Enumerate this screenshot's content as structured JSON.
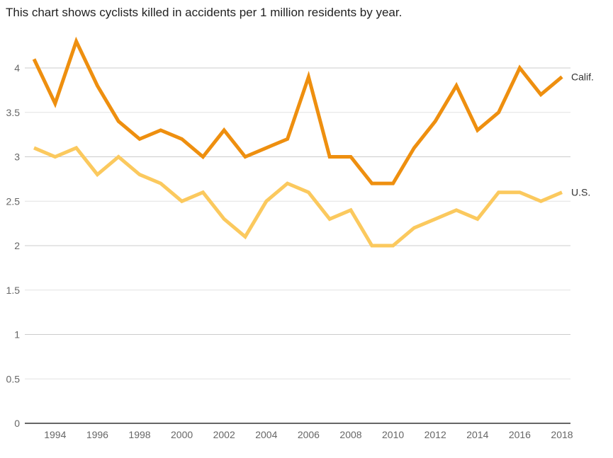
{
  "chart_data": {
    "type": "line",
    "title": "This chart shows cyclists killed in accidents per 1 million residents by year.",
    "xlabel": "",
    "ylabel": "",
    "x": [
      1993,
      1994,
      1995,
      1996,
      1997,
      1998,
      1999,
      2000,
      2001,
      2002,
      2003,
      2004,
      2005,
      2006,
      2007,
      2008,
      2009,
      2010,
      2011,
      2012,
      2013,
      2014,
      2015,
      2016,
      2017,
      2018
    ],
    "x_ticks": [
      "1994",
      "1996",
      "1998",
      "2000",
      "2002",
      "2004",
      "2006",
      "2008",
      "2010",
      "2012",
      "2014",
      "2016",
      "2018"
    ],
    "y_ticks": [
      "0",
      "0.5",
      "1",
      "1.5",
      "2",
      "2.5",
      "3",
      "3.5",
      "4"
    ],
    "ylim": [
      0,
      4.4
    ],
    "grid": true,
    "legend": "inline labels at right end of lines",
    "series": [
      {
        "name": "Calif.",
        "color": "#ee8f0f",
        "values": [
          4.1,
          3.6,
          4.3,
          3.8,
          3.4,
          3.2,
          3.3,
          3.2,
          3.0,
          3.3,
          3.0,
          3.1,
          3.2,
          3.9,
          3.0,
          3.0,
          2.7,
          2.7,
          3.1,
          3.4,
          3.8,
          3.3,
          3.5,
          4.0,
          3.7,
          3.9
        ]
      },
      {
        "name": "U.S.",
        "color": "#fbc95e",
        "values": [
          3.1,
          3.0,
          3.1,
          2.8,
          3.0,
          2.8,
          2.7,
          2.5,
          2.6,
          2.3,
          2.1,
          2.5,
          2.7,
          2.6,
          2.3,
          2.4,
          2.0,
          2.0,
          2.2,
          2.3,
          2.4,
          2.3,
          2.6,
          2.6,
          2.5,
          2.6
        ]
      }
    ]
  }
}
